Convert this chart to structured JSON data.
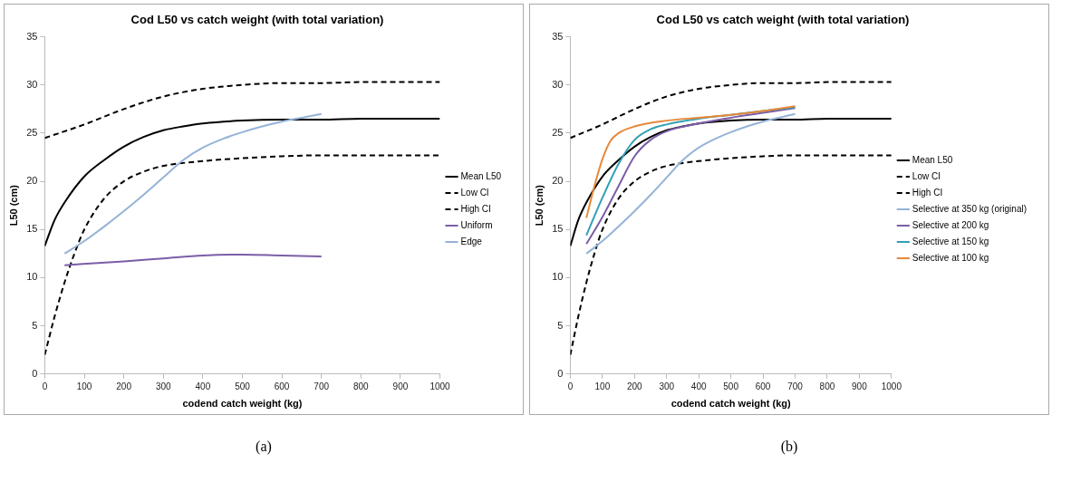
{
  "chart_data": [
    {
      "type": "line",
      "title": "Cod L50 vs catch weight (with total variation)",
      "xlabel": "codend catch weight (kg)",
      "ylabel": "L50 (cm)",
      "xlim": [
        0,
        1000
      ],
      "xticks": [
        0,
        100,
        200,
        300,
        400,
        500,
        600,
        700,
        800,
        900,
        1000
      ],
      "ylim": [
        0,
        35
      ],
      "yticks": [
        0,
        5,
        10,
        15,
        20,
        25,
        30,
        35
      ],
      "grid": false,
      "legend": "right",
      "marker": "none",
      "annotations": [
        "(a)"
      ],
      "series": [
        {
          "name": "Mean L50",
          "color": "#000000",
          "line_style": "solid",
          "x": [
            0,
            25,
            50,
            100,
            150,
            200,
            250,
            300,
            350,
            400,
            500,
            600,
            700,
            800,
            1000
          ],
          "values": [
            13.3,
            16,
            17.8,
            20.5,
            22.2,
            23.6,
            24.6,
            25.3,
            25.7,
            26.0,
            26.3,
            26.4,
            26.4,
            26.5,
            26.5
          ]
        },
        {
          "name": "Low CI",
          "color": "#000000",
          "line_style": "dashed",
          "x": [
            0,
            25,
            50,
            75,
            100,
            150,
            200,
            250,
            300,
            400,
            500,
            600,
            700,
            1000
          ],
          "values": [
            2.0,
            6,
            9.5,
            12.5,
            15,
            18.2,
            20.0,
            21.0,
            21.6,
            22.1,
            22.4,
            22.6,
            22.7,
            22.7
          ]
        },
        {
          "name": "High CI",
          "color": "#000000",
          "line_style": "dashed",
          "x": [
            0,
            100,
            200,
            300,
            400,
            500,
            600,
            700,
            800,
            1000
          ],
          "values": [
            24.5,
            25.9,
            27.5,
            28.8,
            29.6,
            30.0,
            30.2,
            30.2,
            30.3,
            30.3
          ]
        },
        {
          "name": "Uniform",
          "color": "#7b5ea7",
          "line_style": "solid",
          "x": [
            50,
            200,
            300,
            400,
            500,
            600,
            700
          ],
          "values": [
            11.3,
            11.7,
            12.0,
            12.3,
            12.4,
            12.3,
            12.2
          ]
        },
        {
          "name": "Edge",
          "color": "#95b3d7",
          "line_style": "solid",
          "x": [
            50,
            100,
            150,
            200,
            250,
            300,
            350,
            400,
            450,
            500,
            550,
            600,
            650,
            700
          ],
          "values": [
            12.5,
            13.8,
            15.3,
            16.9,
            18.6,
            20.4,
            22.2,
            23.5,
            24.4,
            25.1,
            25.7,
            26.2,
            26.6,
            27.0
          ]
        }
      ]
    },
    {
      "type": "line",
      "title": "Cod L50 vs catch weight (with total variation)",
      "xlabel": "codend catch weight (kg)",
      "ylabel": "L50 (cm)",
      "xlim": [
        0,
        1000
      ],
      "xticks": [
        0,
        100,
        200,
        300,
        400,
        500,
        600,
        700,
        800,
        900,
        1000
      ],
      "ylim": [
        0,
        35
      ],
      "yticks": [
        0,
        5,
        10,
        15,
        20,
        25,
        30,
        35
      ],
      "grid": false,
      "legend": "right",
      "marker": "none",
      "annotations": [
        "(b)"
      ],
      "series": [
        {
          "name": "Mean L50",
          "color": "#000000",
          "line_style": "solid",
          "x": [
            0,
            25,
            50,
            100,
            150,
            200,
            250,
            300,
            350,
            400,
            500,
            600,
            700,
            800,
            1000
          ],
          "values": [
            13.3,
            16,
            17.8,
            20.5,
            22.2,
            23.6,
            24.6,
            25.3,
            25.7,
            26.0,
            26.3,
            26.4,
            26.4,
            26.5,
            26.5
          ]
        },
        {
          "name": "Low CI",
          "color": "#000000",
          "line_style": "dashed",
          "x": [
            0,
            25,
            50,
            75,
            100,
            150,
            200,
            250,
            300,
            400,
            500,
            600,
            700,
            1000
          ],
          "values": [
            2.0,
            6,
            9.5,
            12.5,
            15,
            18.2,
            20.0,
            21.0,
            21.6,
            22.1,
            22.4,
            22.6,
            22.7,
            22.7
          ]
        },
        {
          "name": "High CI",
          "color": "#000000",
          "line_style": "dashed",
          "x": [
            0,
            100,
            200,
            300,
            400,
            500,
            600,
            700,
            800,
            1000
          ],
          "values": [
            24.5,
            25.9,
            27.5,
            28.8,
            29.6,
            30.0,
            30.2,
            30.2,
            30.3,
            30.3
          ]
        },
        {
          "name": "Selective at 350 kg (original)",
          "color": "#95b3d7",
          "line_style": "solid",
          "x": [
            50,
            100,
            150,
            200,
            250,
            300,
            350,
            400,
            450,
            500,
            550,
            600,
            650,
            700
          ],
          "values": [
            12.5,
            13.8,
            15.3,
            16.9,
            18.6,
            20.4,
            22.2,
            23.5,
            24.4,
            25.1,
            25.7,
            26.2,
            26.6,
            27.0
          ]
        },
        {
          "name": "Selective at 200 kg",
          "color": "#7b5ea7",
          "line_style": "solid",
          "x": [
            50,
            100,
            150,
            200,
            250,
            300,
            400,
            500,
            600,
            700
          ],
          "values": [
            13.5,
            16.3,
            19.5,
            22.6,
            24.3,
            25.2,
            26.0,
            26.6,
            27.1,
            27.6
          ]
        },
        {
          "name": "Selective at 150 kg",
          "color": "#31a0b5",
          "line_style": "solid",
          "x": [
            50,
            100,
            150,
            200,
            250,
            300,
            400,
            500,
            600,
            700
          ],
          "values": [
            14.4,
            18.3,
            21.8,
            24.3,
            25.4,
            25.9,
            26.5,
            26.9,
            27.3,
            27.7
          ]
        },
        {
          "name": "Selective at 100 kg",
          "color": "#e6883a",
          "line_style": "solid",
          "x": [
            50,
            75,
            100,
            125,
            150,
            200,
            300,
            400,
            500,
            600,
            700
          ],
          "values": [
            16.2,
            19.5,
            22.3,
            24.2,
            25.0,
            25.7,
            26.3,
            26.6,
            26.9,
            27.3,
            27.8
          ]
        }
      ]
    }
  ]
}
